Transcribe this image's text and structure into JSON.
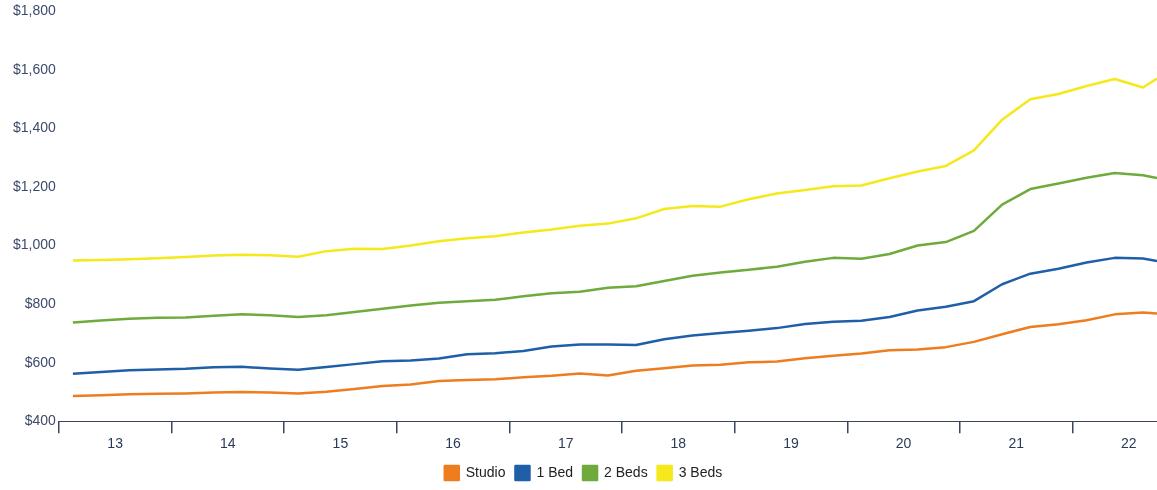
{
  "chart_data": {
    "type": "line",
    "x": [
      13.125,
      13.375,
      13.625,
      13.875,
      14.125,
      14.375,
      14.625,
      14.875,
      15.125,
      15.375,
      15.625,
      15.875,
      16.125,
      16.375,
      16.625,
      16.875,
      17.125,
      17.375,
      17.625,
      17.875,
      18.125,
      18.375,
      18.625,
      18.875,
      19.125,
      19.375,
      19.625,
      19.875,
      20.125,
      20.375,
      20.625,
      20.875,
      21.125,
      21.375,
      21.625,
      21.875,
      22.125,
      22.375,
      22.625,
      22.75
    ],
    "series": [
      {
        "name": "Studio",
        "color": "#ee7d1f",
        "values": [
          486,
          489,
          492,
          494,
          495,
          498,
          500,
          498,
          495,
          501,
          510,
          520,
          525,
          537,
          541,
          543,
          550,
          555,
          563,
          556,
          572,
          581,
          590,
          593,
          601,
          604,
          615,
          624,
          631,
          642,
          645,
          653,
          671,
          697,
          722,
          731,
          745,
          765,
          771,
          768
        ]
      },
      {
        "name": "1 Bed",
        "color": "#1f5fa8",
        "values": [
          562,
          568,
          574,
          577,
          579,
          584,
          586,
          580,
          576,
          585,
          595,
          605,
          607,
          614,
          629,
          632,
          640,
          655,
          662,
          662,
          660,
          680,
          693,
          701,
          709,
          718,
          732,
          740,
          743,
          756,
          778,
          791,
          810,
          868,
          904,
          921,
          942,
          958,
          956,
          947
        ]
      },
      {
        "name": "2 Beds",
        "color": "#6faa3c",
        "values": [
          737,
          744,
          750,
          753,
          754,
          760,
          765,
          762,
          756,
          762,
          773,
          784,
          795,
          805,
          810,
          815,
          827,
          837,
          842,
          856,
          861,
          879,
          897,
          908,
          917,
          928,
          945,
          958,
          955,
          971,
          1000,
          1012,
          1050,
          1140,
          1193,
          1212,
          1232,
          1248,
          1240,
          1231
        ]
      },
      {
        "name": "3 Beds",
        "color": "#f5e81b",
        "values": [
          949,
          951,
          953,
          957,
          961,
          966,
          969,
          967,
          962,
          981,
          989,
          988,
          1000,
          1015,
          1025,
          1032,
          1045,
          1055,
          1068,
          1075,
          1093,
          1125,
          1135,
          1133,
          1158,
          1178,
          1190,
          1203,
          1205,
          1230,
          1253,
          1272,
          1325,
          1430,
          1500,
          1518,
          1545,
          1569,
          1540,
          1571
        ]
      }
    ],
    "xlim": [
      13,
      22.75
    ],
    "xticks": [
      {
        "value": 13,
        "label": null
      },
      {
        "value": 13.5,
        "label": "13"
      },
      {
        "value": 14,
        "label": null
      },
      {
        "value": 14.5,
        "label": "14"
      },
      {
        "value": 15,
        "label": null
      },
      {
        "value": 15.5,
        "label": "15"
      },
      {
        "value": 16,
        "label": null
      },
      {
        "value": 16.5,
        "label": "16"
      },
      {
        "value": 17,
        "label": null
      },
      {
        "value": 17.5,
        "label": "17"
      },
      {
        "value": 18,
        "label": null
      },
      {
        "value": 18.5,
        "label": "18"
      },
      {
        "value": 19,
        "label": null
      },
      {
        "value": 19.5,
        "label": "19"
      },
      {
        "value": 20,
        "label": null
      },
      {
        "value": 20.5,
        "label": "20"
      },
      {
        "value": 21,
        "label": null
      },
      {
        "value": 21.5,
        "label": "21"
      },
      {
        "value": 22,
        "label": null
      },
      {
        "value": 22.5,
        "label": "22"
      }
    ],
    "ylim": [
      400,
      1800
    ],
    "yticks": [
      {
        "value": 400,
        "label": "$400"
      },
      {
        "value": 600,
        "label": "$600"
      },
      {
        "value": 800,
        "label": "$800"
      },
      {
        "value": 1000,
        "label": "$1,000"
      },
      {
        "value": 1200,
        "label": "$1,200"
      },
      {
        "value": 1400,
        "label": "$1,400"
      },
      {
        "value": 1600,
        "label": "$1,600"
      },
      {
        "value": 1800,
        "label": "$1,800"
      }
    ],
    "legend": "bottom",
    "marker": "none",
    "line_style": "solid"
  }
}
